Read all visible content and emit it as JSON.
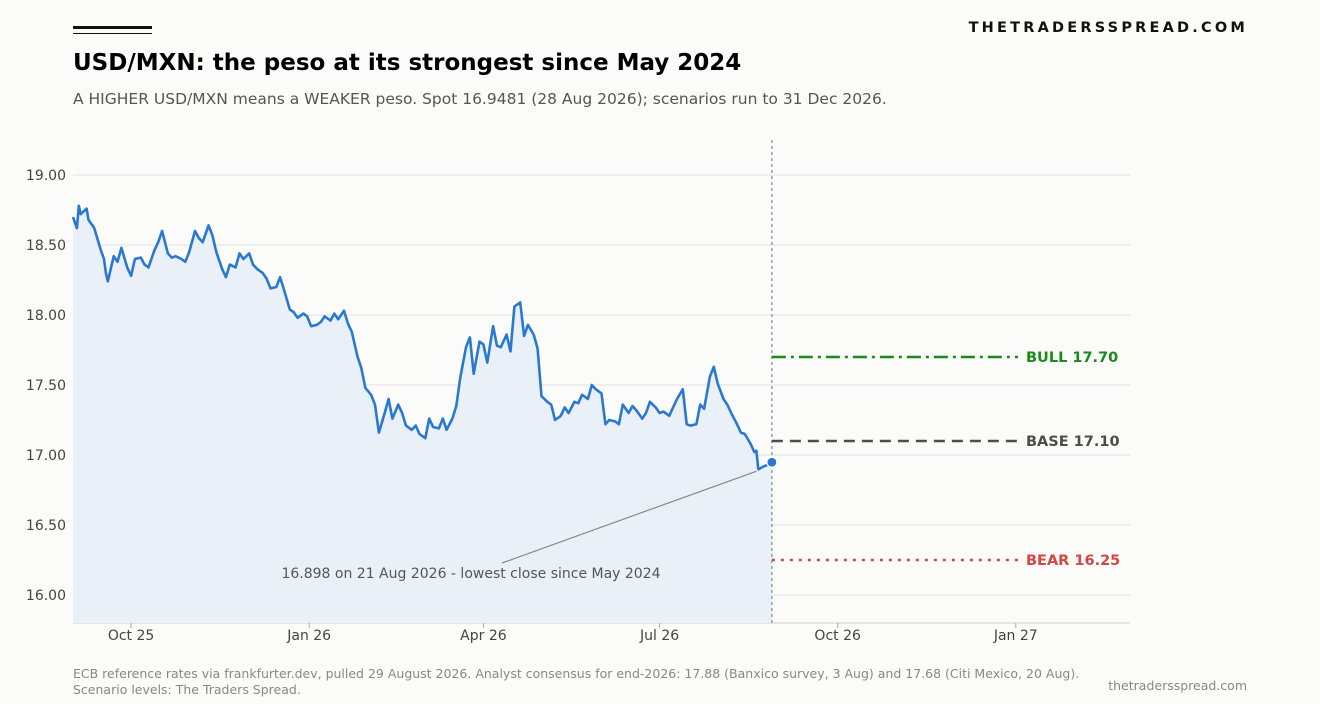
{
  "brand": "THETRADERSSPREAD.COM",
  "title": "USD/MXN: the peso at its strongest since May 2024",
  "subtitle": "A HIGHER USD/MXN means a WEAKER peso. Spot 16.9481 (28 Aug 2026); scenarios run to 31 Dec 2026.",
  "footer": {
    "source": "ECB reference rates via frankfurter.dev, pulled 29 August 2026. Analyst consensus for end-2026: 17.88 (Banxico survey, 3 Aug) and 17.68 (Citi Mexico, 20 Aug). Scenario levels: The Traders Spread.",
    "site": "thetradersspread.com"
  },
  "colors": {
    "line": "#2a78d1",
    "fill": "#eaf0f8",
    "bull": "#1a8a1a",
    "base": "#4d4d4d",
    "bear": "#d64545",
    "grid": "#e2e2e2",
    "vline": "#8a8fa0"
  },
  "chart_data": {
    "type": "line",
    "x_range": [
      "2025-09-01",
      "2027-03-01"
    ],
    "ylim": [
      15.8,
      19.25
    ],
    "y_ticks": [
      16.0,
      16.5,
      17.0,
      17.5,
      18.0,
      18.5,
      19.0
    ],
    "y_tick_labels": [
      "16.00",
      "16.50",
      "17.00",
      "17.50",
      "18.00",
      "18.50",
      "19.00"
    ],
    "x_ticks": [
      "2025-10-01",
      "2026-01-01",
      "2026-04-01",
      "2026-07-01",
      "2026-10-01",
      "2027-01-01"
    ],
    "x_tick_labels": [
      "Oct 25",
      "Jan 26",
      "Apr 26",
      "Jul 26",
      "Oct 26",
      "Jan 27"
    ],
    "grid": "horizontal",
    "series": [
      {
        "values_x": [
          "2025-09-01",
          "2025-09-03",
          "2025-09-04",
          "2025-09-05",
          "2025-09-08",
          "2025-09-09",
          "2025-09-10",
          "2025-09-11",
          "2025-09-12",
          "2025-09-15",
          "2025-09-16",
          "2025-09-17",
          "2025-09-18",
          "2025-09-19",
          "2025-09-22",
          "2025-09-24",
          "2025-09-26",
          "2025-09-29",
          "2025-10-01",
          "2025-10-03",
          "2025-10-06",
          "2025-10-08",
          "2025-10-10",
          "2025-10-13",
          "2025-10-15",
          "2025-10-17",
          "2025-10-20",
          "2025-10-22",
          "2025-10-24",
          "2025-10-27",
          "2025-10-29",
          "2025-10-31",
          "2025-11-03",
          "2025-11-05",
          "2025-11-07",
          "2025-11-10",
          "2025-11-12",
          "2025-11-14",
          "2025-11-17",
          "2025-11-19",
          "2025-11-21",
          "2025-11-24",
          "2025-11-26",
          "2025-11-28",
          "2025-12-01",
          "2025-12-03",
          "2025-12-05",
          "2025-12-08",
          "2025-12-10",
          "2025-12-12",
          "2025-12-15",
          "2025-12-17",
          "2025-12-19",
          "2025-12-22",
          "2025-12-24",
          "2025-12-26",
          "2025-12-29",
          "2025-12-31",
          "2026-01-02",
          "2026-01-05",
          "2026-01-07",
          "2026-01-09",
          "2026-01-12",
          "2026-01-14",
          "2026-01-16",
          "2026-01-19",
          "2026-01-21",
          "2026-01-23",
          "2026-01-26",
          "2026-01-28",
          "2026-01-30",
          "2026-02-02",
          "2026-02-04",
          "2026-02-06",
          "2026-02-09",
          "2026-02-11",
          "2026-02-13",
          "2026-02-16",
          "2026-02-18",
          "2026-02-20",
          "2026-02-23",
          "2026-02-25",
          "2026-02-27",
          "2026-03-02",
          "2026-03-04",
          "2026-03-06",
          "2026-03-09",
          "2026-03-11",
          "2026-03-13",
          "2026-03-16",
          "2026-03-18",
          "2026-03-20",
          "2026-03-23",
          "2026-03-25",
          "2026-03-27",
          "2026-03-30",
          "2026-04-01",
          "2026-04-03",
          "2026-04-06",
          "2026-04-08",
          "2026-04-10",
          "2026-04-13",
          "2026-04-15",
          "2026-04-17",
          "2026-04-20",
          "2026-04-22",
          "2026-04-24",
          "2026-04-27",
          "2026-04-29",
          "2026-05-01",
          "2026-05-04",
          "2026-05-06",
          "2026-05-08",
          "2026-05-11",
          "2026-05-13",
          "2026-05-15",
          "2026-05-18",
          "2026-05-20",
          "2026-05-22",
          "2026-05-25",
          "2026-05-27",
          "2026-05-29",
          "2026-06-01",
          "2026-06-03",
          "2026-06-05",
          "2026-06-08",
          "2026-06-10",
          "2026-06-12",
          "2026-06-15",
          "2026-06-17",
          "2026-06-19",
          "2026-06-22",
          "2026-06-24",
          "2026-06-26",
          "2026-06-29",
          "2026-07-01",
          "2026-07-03",
          "2026-07-06",
          "2026-07-08",
          "2026-07-10",
          "2026-07-13",
          "2026-07-15",
          "2026-07-17",
          "2026-07-20",
          "2026-07-22",
          "2026-07-24",
          "2026-07-27",
          "2026-07-29",
          "2026-07-31",
          "2026-08-03",
          "2026-08-05",
          "2026-08-07",
          "2026-08-10",
          "2026-08-12",
          "2026-08-14",
          "2026-08-17",
          "2026-08-19",
          "2026-08-21",
          "2026-08-24",
          "2026-08-26"
        ],
        "values": [
          18.7,
          18.62,
          18.78,
          18.72,
          18.76,
          18.68,
          18.66,
          18.64,
          18.62,
          18.48,
          18.44,
          18.4,
          18.3,
          18.24,
          18.42,
          18.38,
          18.48,
          18.34,
          18.28,
          18.4,
          18.41,
          18.36,
          18.34,
          18.46,
          18.52,
          18.6,
          18.44,
          18.41,
          18.42,
          18.4,
          18.38,
          18.45,
          18.6,
          18.55,
          18.52,
          18.64,
          18.57,
          18.45,
          18.33,
          18.27,
          18.36,
          18.34,
          18.44,
          18.4,
          18.44,
          18.36,
          18.33,
          18.3,
          18.26,
          18.19,
          18.2,
          18.27,
          18.18,
          18.04,
          18.02,
          17.98,
          18.01,
          17.99,
          17.92,
          17.93,
          17.95,
          17.99,
          17.96,
          18.01,
          17.97,
          18.03,
          17.94,
          17.88,
          17.7,
          17.62,
          17.48,
          17.43,
          17.36,
          17.16,
          17.3,
          17.4,
          17.26,
          17.36,
          17.3,
          17.21,
          17.18,
          17.21,
          17.15,
          17.12,
          17.26,
          17.2,
          17.19,
          17.26,
          17.18,
          17.26,
          17.35,
          17.55,
          17.77,
          17.84,
          17.58,
          17.81,
          17.79,
          17.66,
          17.92,
          17.78,
          17.77,
          17.86,
          17.74,
          18.06,
          18.09,
          17.85,
          17.93,
          17.86,
          17.76,
          17.42,
          17.38,
          17.36,
          17.25,
          17.28,
          17.34,
          17.3,
          17.38,
          17.37,
          17.43,
          17.4,
          17.5,
          17.47,
          17.44,
          17.22,
          17.25,
          17.24,
          17.22,
          17.36,
          17.3,
          17.35,
          17.32,
          17.26,
          17.3,
          17.38,
          17.34,
          17.3,
          17.31,
          17.28,
          17.34,
          17.4,
          17.47,
          17.22,
          17.21,
          17.22,
          17.36,
          17.33,
          17.56,
          17.63,
          17.51,
          17.48,
          17.55,
          17.45,
          17.57,
          17.52,
          17.48,
          17.43,
          17.46,
          17.47,
          17.41,
          17.46
        ],
        "tail": {
          "values_x": [
            "2026-08-03",
            "2026-08-05",
            "2026-08-07",
            "2026-08-10",
            "2026-08-12",
            "2026-08-14",
            "2026-08-17",
            "2026-08-19",
            "2026-08-20",
            "2026-08-21",
            "2026-08-24",
            "2026-08-26",
            "2026-08-27"
          ],
          "values": [
            17.4,
            17.36,
            17.3,
            17.22,
            17.16,
            17.15,
            17.08,
            17.02,
            17.03,
            16.898,
            16.92,
            16.93,
            16.94
          ]
        }
      }
    ],
    "spot": {
      "x": "2026-08-28",
      "y": 16.9481
    },
    "scenarios": [
      {
        "label": "BULL",
        "value": 17.7,
        "value_text": "17.70",
        "style": "dashdot"
      },
      {
        "label": "BASE",
        "value": 17.1,
        "value_text": "17.10",
        "style": "dashed"
      },
      {
        "label": "BEAR",
        "value": 16.25,
        "value_text": "16.25",
        "style": "dotted"
      }
    ],
    "annotation": {
      "text": "16.898 on 21 Aug 2026 - lowest close since May 2024",
      "point_x": "2026-08-21",
      "point_y": 16.898
    }
  }
}
